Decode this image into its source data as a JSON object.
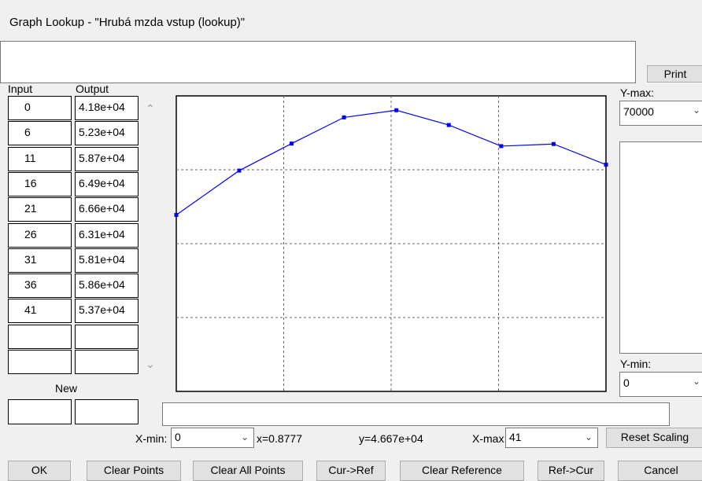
{
  "window": {
    "title": "Graph Lookup - \"Hrubá mzda vstup (lookup)\""
  },
  "buttons_top": {
    "print": "Print"
  },
  "table": {
    "headers": {
      "input": "Input",
      "output": "Output"
    },
    "rows": [
      {
        "input": 0,
        "output": "4.18e+04"
      },
      {
        "input": 6,
        "output": "5.23e+04"
      },
      {
        "input": 11,
        "output": "5.87e+04"
      },
      {
        "input": 16,
        "output": "6.49e+04"
      },
      {
        "input": 21,
        "output": "6.66e+04"
      },
      {
        "input": 26,
        "output": "6.31e+04"
      },
      {
        "input": 31,
        "output": "5.81e+04"
      },
      {
        "input": 36,
        "output": "5.86e+04"
      },
      {
        "input": 41,
        "output": "5.37e+04"
      }
    ],
    "new_label": "New"
  },
  "scale": {
    "ymax_label": "Y-max:",
    "ymax": 70000,
    "ymin_label": "Y-min:",
    "ymin": 0,
    "xmin_label": "X-min:",
    "xmin": 0,
    "xmax_label": "X-max:",
    "xmax": 41
  },
  "cursor": {
    "x": "x=0.8777",
    "y": "y=4.667e+04"
  },
  "buttons": {
    "reset_scaling": "Reset Scaling",
    "ok": "OK",
    "clear_points": "Clear Points",
    "clear_all_points": "Clear All Points",
    "cur_ref": "Cur->Ref",
    "clear_reference": "Clear Reference",
    "ref_cur": "Ref->Cur",
    "cancel": "Cancel"
  }
}
